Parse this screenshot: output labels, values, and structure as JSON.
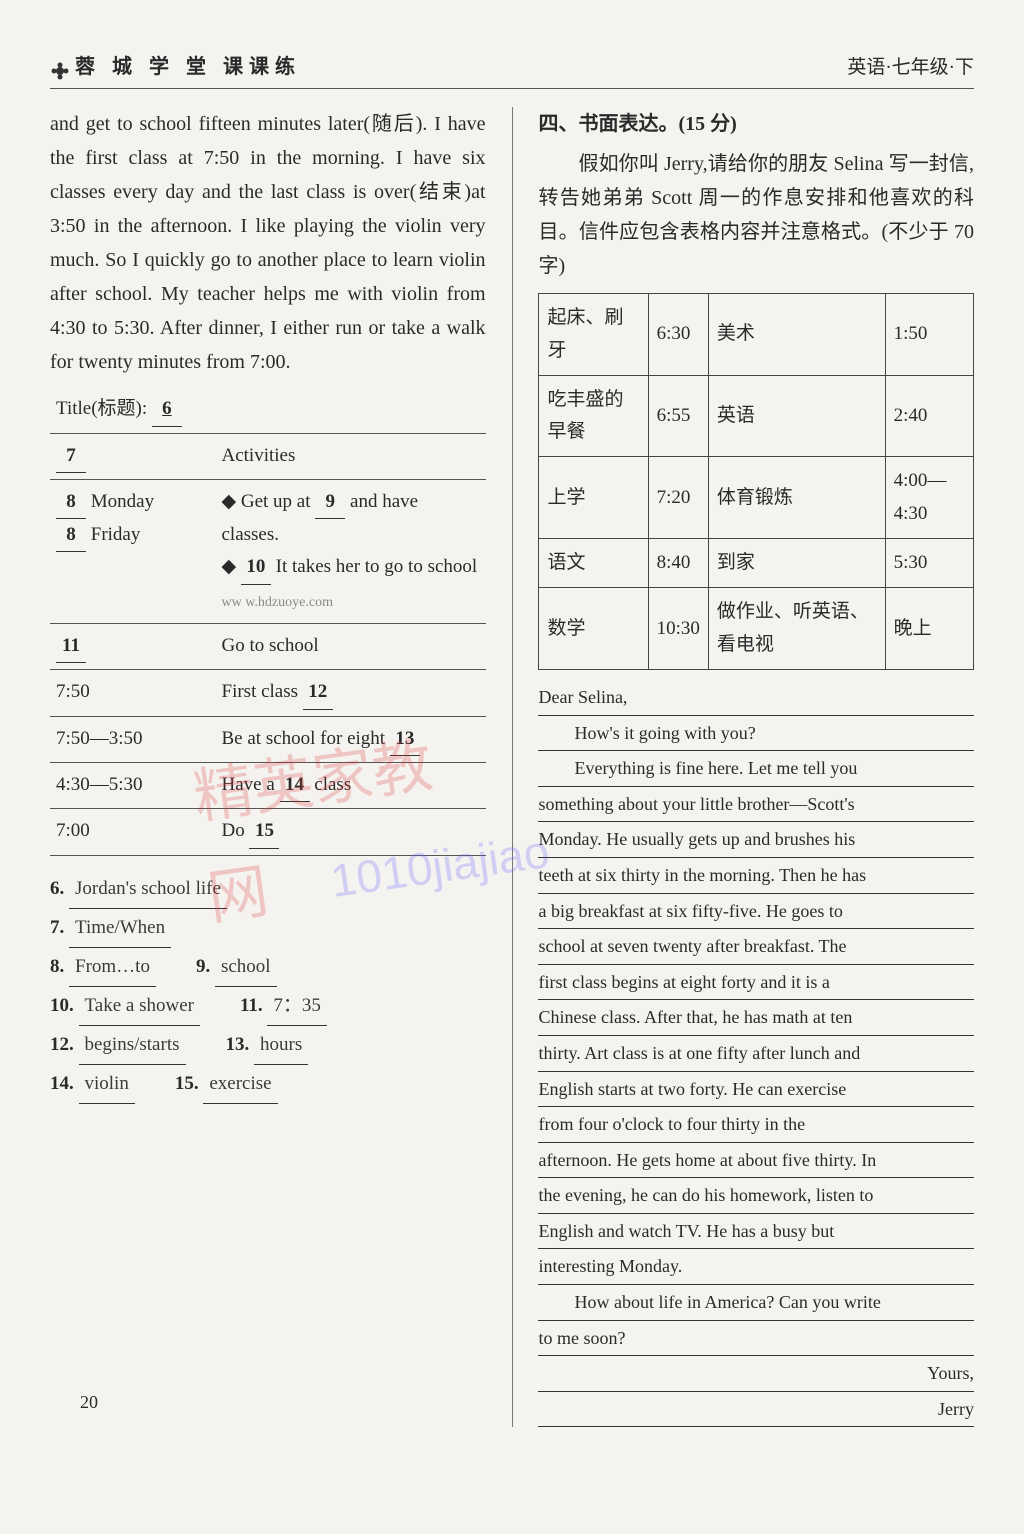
{
  "header": {
    "left": "蓉 城 学 堂   课课练",
    "right": "英语·七年级·下"
  },
  "left": {
    "passage": "and get to school fifteen minutes later(随后). I have the first class at 7:50 in the morning. I have six classes every day and the last class is over(结束)at 3:50 in the afternoon. I like playing the violin very much. So I quickly go to another place to learn violin after school. My teacher helps me with violin from 4:30 to 5:30. After dinner, I either run or take a walk for twenty minutes from 7:00.",
    "title_label": "Title(标题):",
    "title_blank": "6",
    "rows": {
      "r1_left": "7",
      "r1_right": "Activities",
      "r2_left_a": "8",
      "r2_left_a2": "Monday",
      "r2_left_b": "8",
      "r2_left_b2": "Friday",
      "r2_right1_a": "Get up at",
      "r2_right1_b": "9",
      "r2_right1_c": "and have",
      "r2_right1_d": "classes.",
      "r2_right2_a": "It takes her to go to school",
      "r2_right2_b": "10",
      "r2_right2_c": "Go to",
      "r2_right2_d": "school",
      "r3_left": "11",
      "r3_right": "Go to school",
      "r4_left": "7:50",
      "r4_right_a": "First class",
      "r4_right_b": "12",
      "r5_left": "7:50—3:50",
      "r5_right_a": "Be at school for eight",
      "r5_right_b": "13",
      "r6_left": "4:30—5:30",
      "r6_right_a": "Have a",
      "r6_right_b": "14",
      "r6_right_c": "class",
      "r7_left": "7:00",
      "r7_right_a": "Do",
      "r7_right_b": "15"
    },
    "answers": [
      {
        "n": "6.",
        "t": "Jordan's school life"
      },
      {
        "n": "7.",
        "t": "Time/When"
      },
      {
        "n": "8.",
        "t": "From…to",
        "n2": "9.",
        "t2": "school"
      },
      {
        "n": "10.",
        "t": "Take a shower",
        "n2": "11.",
        "t2": "7：35"
      },
      {
        "n": "12.",
        "t": "begins/starts",
        "n2": "13.",
        "t2": "hours"
      },
      {
        "n": "14.",
        "t": "violin",
        "n2": "15.",
        "t2": "exercise"
      }
    ]
  },
  "right": {
    "section_title": "四、书面表达。(15 分)",
    "prompt1": "假如你叫 Jerry,请给你的朋友 Selina 写一封信,转告她弟弟 Scott 周一的作息安排和他喜欢的科目。信件应包含表格内容并注意格式。(不少于 70 字)",
    "table": [
      [
        "起床、刷牙",
        "6:30",
        "美术",
        "1:50"
      ],
      [
        "吃丰盛的早餐",
        "6:55",
        "英语",
        "2:40"
      ],
      [
        "上学",
        "7:20",
        "体育锻炼",
        "4:00—4:30"
      ],
      [
        "语文",
        "8:40",
        "到家",
        "5:30"
      ],
      [
        "数学",
        "10:30",
        "做作业、听英语、看电视",
        "晚上"
      ]
    ],
    "letter": [
      {
        "t": "Dear Selina,",
        "cls": ""
      },
      {
        "t": "How's it going with you?",
        "cls": "indent"
      },
      {
        "t": "Everything is fine here. Let me tell you",
        "cls": "indent"
      },
      {
        "t": "something about your little brother—Scott's",
        "cls": ""
      },
      {
        "t": "Monday. He usually gets up and brushes his",
        "cls": ""
      },
      {
        "t": "teeth at six thirty in the morning. Then he has",
        "cls": ""
      },
      {
        "t": "a big breakfast at six fifty-five. He goes to",
        "cls": ""
      },
      {
        "t": "school at seven twenty after breakfast. The",
        "cls": ""
      },
      {
        "t": "first class begins at eight forty and it is a",
        "cls": ""
      },
      {
        "t": "Chinese class. After that, he has math at ten",
        "cls": ""
      },
      {
        "t": "thirty. Art class is at one fifty after lunch and",
        "cls": ""
      },
      {
        "t": "English starts at two forty. He can exercise",
        "cls": ""
      },
      {
        "t": "from four o'clock to four thirty in the",
        "cls": ""
      },
      {
        "t": "afternoon. He gets home at about five thirty. In",
        "cls": ""
      },
      {
        "t": "the evening, he can do his homework, listen to",
        "cls": ""
      },
      {
        "t": "English and watch TV. He has a busy but",
        "cls": ""
      },
      {
        "t": "interesting Monday.",
        "cls": ""
      },
      {
        "t": "How about life in America? Can you write",
        "cls": "indent"
      },
      {
        "t": "to me soon?",
        "cls": ""
      },
      {
        "t": "Yours,",
        "cls": "right"
      },
      {
        "t": "Jerry",
        "cls": "right"
      }
    ]
  },
  "page_number": "20",
  "watermark_url": "ww w.hdzuoye.com"
}
